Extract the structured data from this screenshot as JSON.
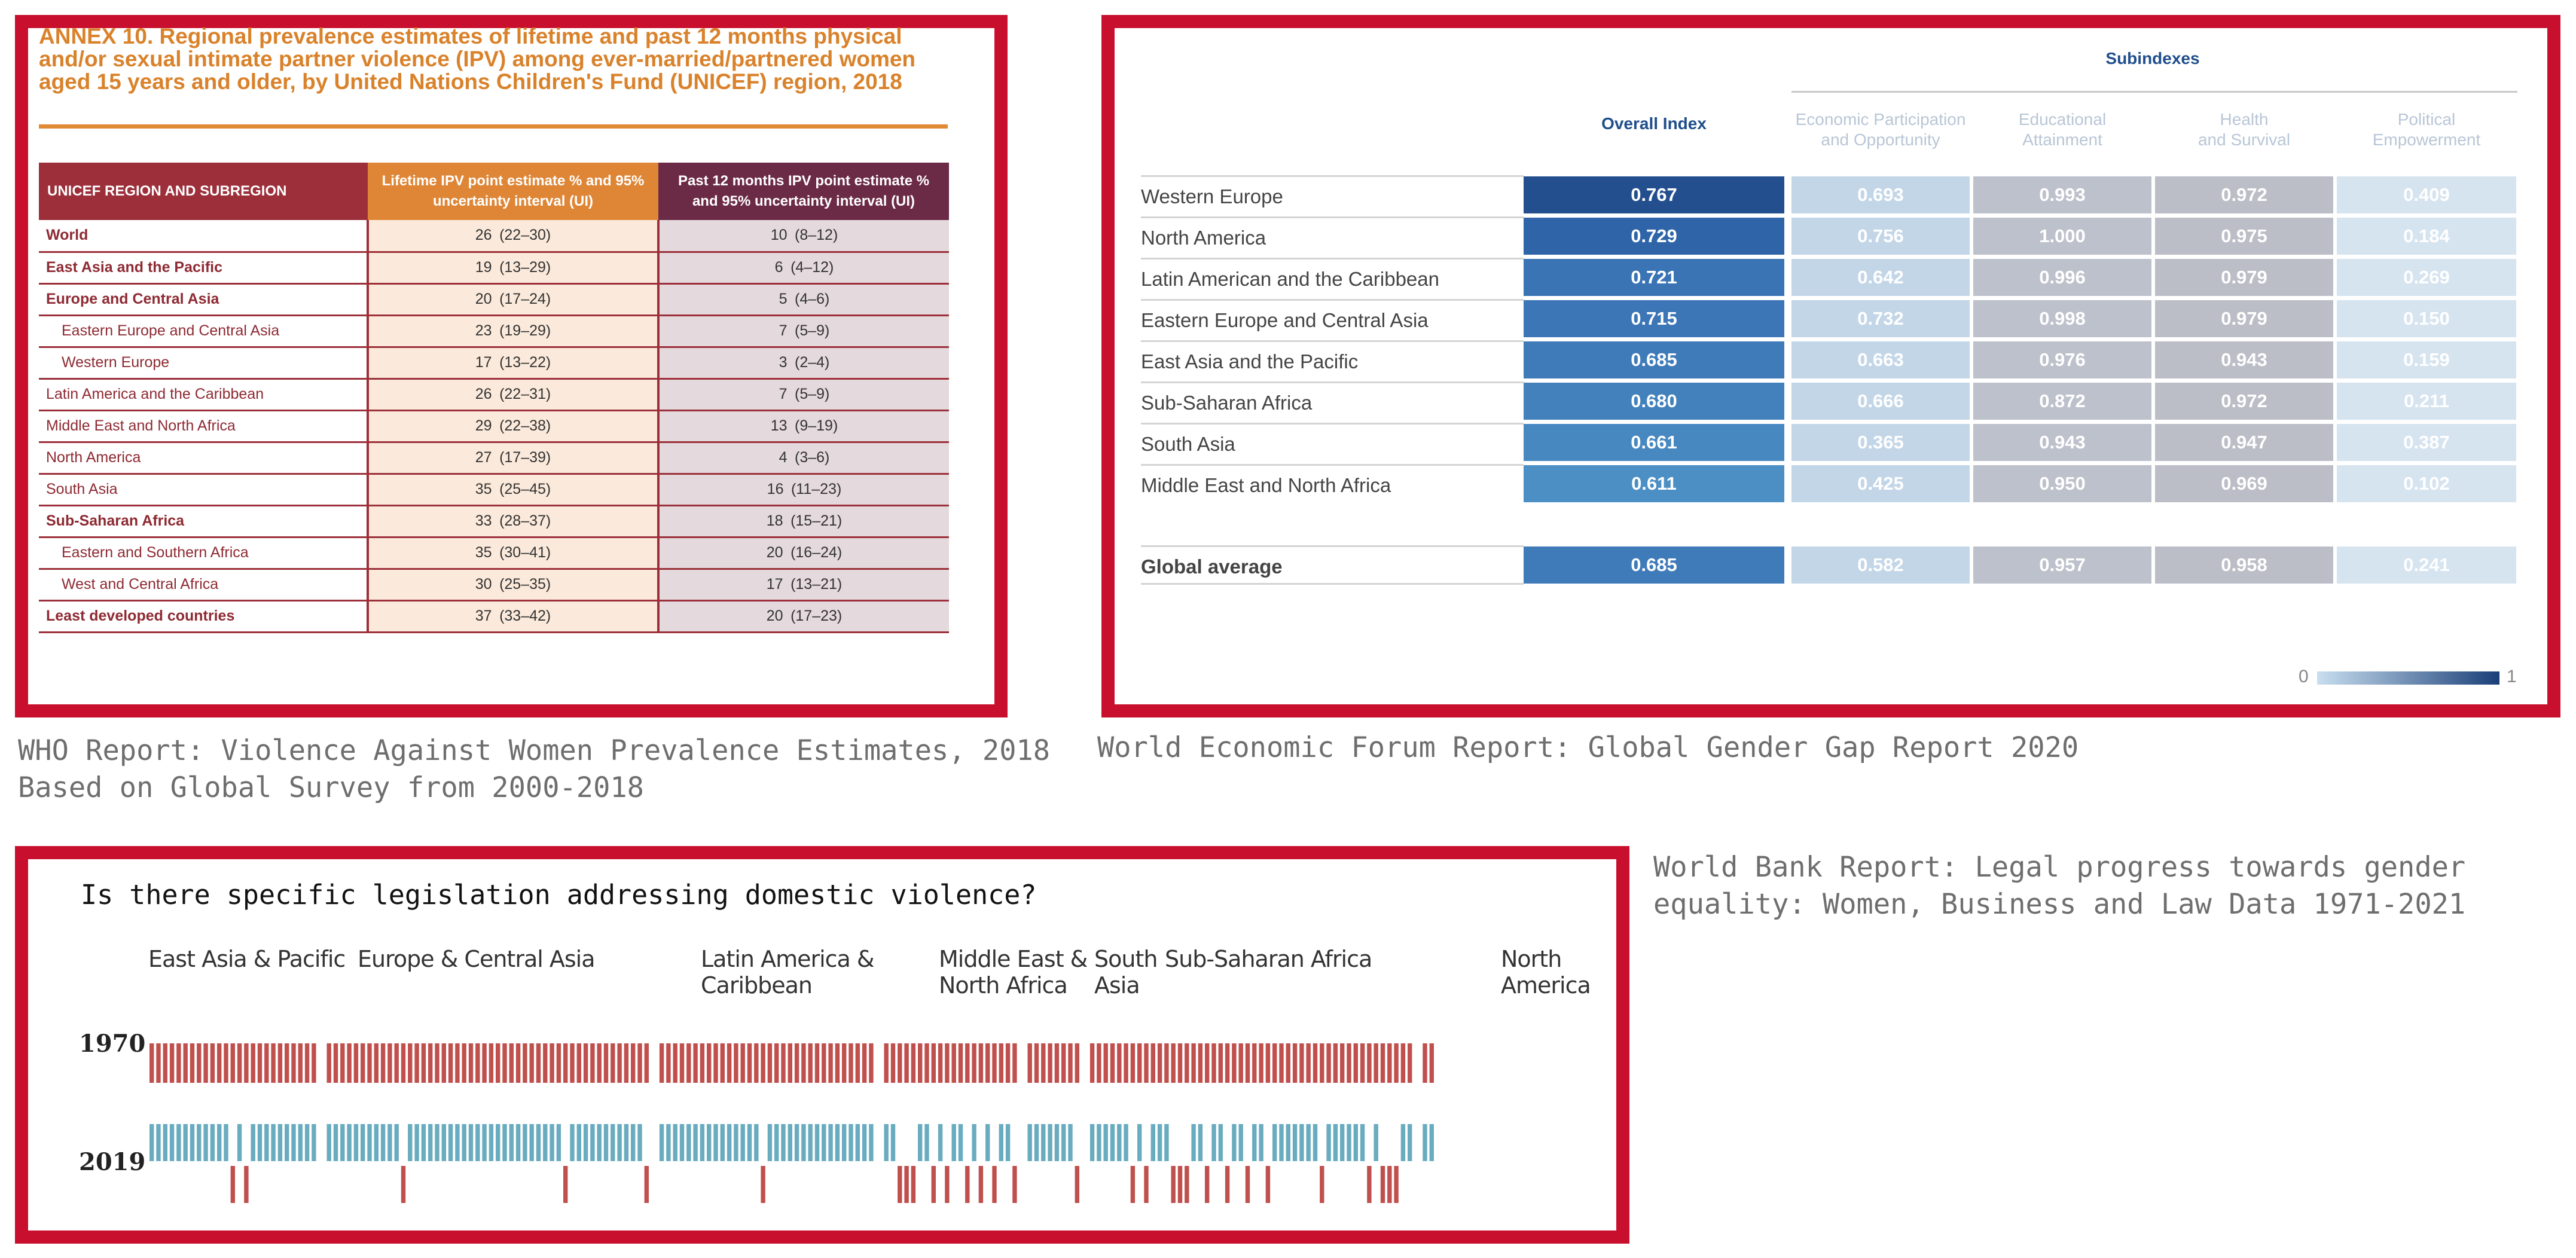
{
  "colors": {
    "frame_red": "#c8102e",
    "who_orange": "#de8636",
    "who_maroon": "#9c2f3a",
    "who_plum": "#6b2a46",
    "wef_navy": "#1f4e8c",
    "bar_red": "#c0504d",
    "bar_teal": "#6aacbf"
  },
  "captions": {
    "who": "WHO Report: Violence Against Women Prevalence Estimates, 2018\nBased on Global Survey from 2000-2018",
    "wef": "World Economic Forum Report: Global Gender Gap Report 2020",
    "wb": "World Bank Report: Legal progress towards gender\nequality: Women, Business and Law Data 1971-2021"
  },
  "chart_data": [
    {
      "type": "table",
      "title": "ANNEX 10. Regional prevalence estimates of lifetime and past 12 months physical and/or sexual intimate partner violence (IPV) among ever-married/partnered women aged 15 years and older, by United Nations Children's Fund (UNICEF) region, 2018",
      "columns": [
        "UNICEF REGION AND SUBREGION",
        "Lifetime IPV point estimate % and 95% uncertainty interval (UI)",
        "Past 12 months IPV point estimate % and 95% uncertainty interval (UI)"
      ],
      "rows": [
        {
          "region": "World",
          "lifetime": "26",
          "lifetime_ui": "(22–30)",
          "past": "10",
          "past_ui": "(8–12)",
          "bold": true,
          "indent": false
        },
        {
          "region": "East Asia and the Pacific",
          "lifetime": "19",
          "lifetime_ui": "(13–29)",
          "past": "6",
          "past_ui": "(4–12)",
          "bold": true,
          "indent": false
        },
        {
          "region": "Europe and Central Asia",
          "lifetime": "20",
          "lifetime_ui": "(17–24)",
          "past": "5",
          "past_ui": "(4–6)",
          "bold": true,
          "indent": false
        },
        {
          "region": "Eastern Europe and Central Asia",
          "lifetime": "23",
          "lifetime_ui": "(19–29)",
          "past": "7",
          "past_ui": "(5–9)",
          "bold": false,
          "indent": true
        },
        {
          "region": "Western Europe",
          "lifetime": "17",
          "lifetime_ui": "(13–22)",
          "past": "3",
          "past_ui": "(2–4)",
          "bold": false,
          "indent": true
        },
        {
          "region": "Latin America and the Caribbean",
          "lifetime": "26",
          "lifetime_ui": "(22–31)",
          "past": "7",
          "past_ui": "(5–9)",
          "bold": false,
          "indent": false
        },
        {
          "region": "Middle East and North Africa",
          "lifetime": "29",
          "lifetime_ui": "(22–38)",
          "past": "13",
          "past_ui": "(9–19)",
          "bold": false,
          "indent": false
        },
        {
          "region": "North America",
          "lifetime": "27",
          "lifetime_ui": "(17–39)",
          "past": "4",
          "past_ui": "(3–6)",
          "bold": false,
          "indent": false
        },
        {
          "region": "South Asia",
          "lifetime": "35",
          "lifetime_ui": "(25–45)",
          "past": "16",
          "past_ui": "(11–23)",
          "bold": false,
          "indent": false
        },
        {
          "region": "Sub-Saharan Africa",
          "lifetime": "33",
          "lifetime_ui": "(28–37)",
          "past": "18",
          "past_ui": "(15–21)",
          "bold": true,
          "indent": false
        },
        {
          "region": "Eastern and Southern Africa",
          "lifetime": "35",
          "lifetime_ui": "(30–41)",
          "past": "20",
          "past_ui": "(16–24)",
          "bold": false,
          "indent": true
        },
        {
          "region": "West and Central Africa",
          "lifetime": "30",
          "lifetime_ui": "(25–35)",
          "past": "17",
          "past_ui": "(13–21)",
          "bold": false,
          "indent": true
        },
        {
          "region": "Least developed countries",
          "lifetime": "37",
          "lifetime_ui": "(33–42)",
          "past": "20",
          "past_ui": "(17–23)",
          "bold": true,
          "indent": false
        }
      ]
    },
    {
      "type": "heatmap",
      "group_header": "Subindexes",
      "columns": [
        "Overall Index",
        "Economic Participation\nand Opportunity",
        "Educational\nAttainment",
        "Health\nand Survival",
        "Political\nEmpowerment"
      ],
      "rows": [
        {
          "label": "Western Europe",
          "values": [
            0.767,
            0.693,
            0.993,
            0.972,
            0.409
          ]
        },
        {
          "label": "North America",
          "values": [
            0.729,
            0.756,
            1.0,
            0.975,
            0.184
          ]
        },
        {
          "label": "Latin American and the Caribbean",
          "values": [
            0.721,
            0.642,
            0.996,
            0.979,
            0.269
          ]
        },
        {
          "label": "Eastern Europe and Central Asia",
          "values": [
            0.715,
            0.732,
            0.998,
            0.979,
            0.15
          ]
        },
        {
          "label": "East Asia and the Pacific",
          "values": [
            0.685,
            0.663,
            0.976,
            0.943,
            0.159
          ]
        },
        {
          "label": "Sub-Saharan Africa",
          "values": [
            0.68,
            0.666,
            0.872,
            0.972,
            0.211
          ]
        },
        {
          "label": "South Asia",
          "values": [
            0.661,
            0.365,
            0.943,
            0.947,
            0.387
          ]
        },
        {
          "label": "Middle East and North Africa",
          "values": [
            0.611,
            0.425,
            0.95,
            0.969,
            0.102
          ]
        }
      ],
      "global": {
        "label": "Global average",
        "values": [
          0.685,
          0.582,
          0.957,
          0.958,
          0.241
        ]
      },
      "legend": {
        "min": "0",
        "max": "1"
      }
    },
    {
      "type": "bar",
      "title": "Is there specific legislation addressing domestic violence?",
      "years": [
        "1970",
        "2019"
      ],
      "legend_colors": {
        "no": "#c0504d",
        "yes": "#6aacbf"
      },
      "regions": [
        {
          "name": "East Asia & Pacific",
          "count": 25,
          "yes_2019": [
            1,
            1,
            1,
            1,
            1,
            1,
            1,
            1,
            1,
            1,
            1,
            1,
            0,
            1,
            0,
            1,
            1,
            1,
            1,
            1,
            1,
            1,
            1,
            1,
            1
          ]
        },
        {
          "name": "Europe & Central Asia",
          "count": 48,
          "yes_2019": [
            1,
            1,
            1,
            1,
            1,
            1,
            1,
            1,
            1,
            1,
            1,
            0,
            1,
            1,
            1,
            1,
            1,
            1,
            1,
            1,
            1,
            1,
            1,
            1,
            1,
            1,
            1,
            1,
            1,
            1,
            1,
            1,
            1,
            1,
            1,
            0,
            1,
            1,
            1,
            1,
            1,
            1,
            1,
            1,
            1,
            1,
            1,
            0
          ]
        },
        {
          "name": "Latin America &\nCaribbean",
          "count": 32,
          "yes_2019": [
            1,
            1,
            1,
            1,
            1,
            1,
            1,
            1,
            1,
            1,
            1,
            1,
            1,
            1,
            1,
            0,
            1,
            1,
            1,
            1,
            1,
            1,
            1,
            1,
            1,
            1,
            1,
            1,
            1,
            1,
            1,
            1
          ]
        },
        {
          "name": "Middle East &\nNorth Africa",
          "count": 20,
          "yes_2019": [
            1,
            1,
            0,
            0,
            0,
            1,
            1,
            0,
            1,
            0,
            1,
            1,
            0,
            1,
            0,
            1,
            0,
            1,
            1,
            0
          ]
        },
        {
          "name": "South\nAsia",
          "count": 8,
          "yes_2019": [
            1,
            1,
            1,
            1,
            1,
            1,
            1,
            0
          ]
        },
        {
          "name": "Sub-Saharan Africa",
          "count": 48,
          "yes_2019": [
            1,
            1,
            1,
            1,
            1,
            1,
            0,
            1,
            0,
            1,
            1,
            1,
            0,
            0,
            0,
            1,
            1,
            0,
            1,
            1,
            0,
            1,
            1,
            0,
            1,
            1,
            0,
            1,
            1,
            1,
            1,
            1,
            1,
            1,
            0,
            1,
            1,
            1,
            1,
            1,
            1,
            0,
            1,
            0,
            0,
            0,
            1,
            1
          ]
        },
        {
          "name": "North\nAmerica",
          "count": 2,
          "yes_2019": [
            1,
            1
          ]
        }
      ]
    }
  ]
}
